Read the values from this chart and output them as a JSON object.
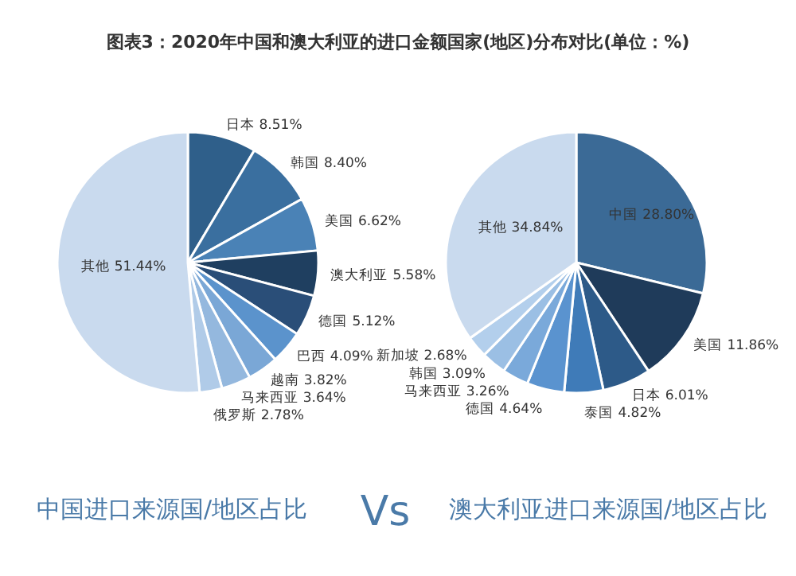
{
  "chart_data": [
    {
      "type": "pie",
      "title": "图表3：2020年中国和澳大利亚的进口金额国家(地区)分布对比(单位：%)",
      "subtitle": "中国进口来源国/地区占比",
      "annotations": [
        "Vs"
      ],
      "value_labels": [
        "8.51%",
        "8.40%",
        "6.62%",
        "5.58%",
        "5.12%",
        "4.09%",
        "3.82%",
        "3.64%",
        "2.78%",
        "51.44%"
      ],
      "categories": [
        "日本",
        "韩国",
        "美国",
        "澳大利亚",
        "德国",
        "巴西",
        "越南",
        "马来西亚",
        "俄罗斯",
        "其他"
      ],
      "values": [
        8.51,
        8.4,
        6.62,
        5.58,
        5.12,
        4.09,
        3.82,
        3.64,
        2.78,
        51.44
      ],
      "colors": [
        "#2f5f8a",
        "#3a6f9f",
        "#4a82b6",
        "#1f3f60",
        "#2a4e78",
        "#5b93cc",
        "#7aa7d6",
        "#94b8de",
        "#b0cbe8",
        "#c9daee"
      ]
    },
    {
      "type": "pie",
      "subtitle": "澳大利亚进口来源国/地区占比",
      "value_labels": [
        "28.80%",
        "11.86%",
        "6.01%",
        "4.82%",
        "4.64%",
        "3.26%",
        "3.09%",
        "2.68%",
        "34.84%"
      ],
      "categories": [
        "中国",
        "美国",
        "日本",
        "泰国",
        "德国",
        "马来西亚",
        "韩国",
        "新加坡",
        "其他"
      ],
      "values": [
        28.8,
        11.86,
        6.01,
        4.82,
        4.64,
        3.26,
        3.09,
        2.68,
        34.84
      ],
      "colors": [
        "#3b6a96",
        "#1f3b5a",
        "#2d5a88",
        "#3f7bb8",
        "#5a93cf",
        "#7aa9da",
        "#9bbfe4",
        "#b3cfec",
        "#c9daee"
      ]
    }
  ]
}
